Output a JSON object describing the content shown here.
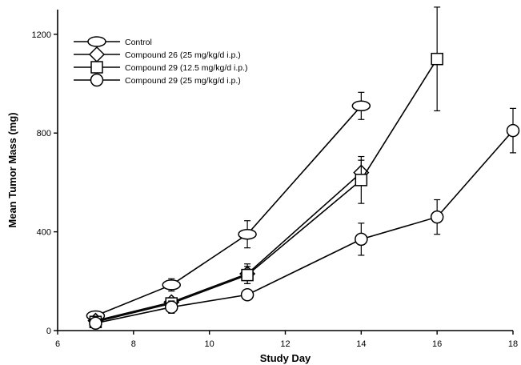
{
  "chart_data": {
    "type": "line",
    "title": "",
    "xlabel": "Study Day",
    "ylabel": "Mean Tumor Mass (mg)",
    "xlim": [
      6,
      18
    ],
    "ylim": [
      0,
      1300
    ],
    "x_ticks": [
      6,
      8,
      10,
      12,
      14,
      16,
      18
    ],
    "y_ticks": [
      0,
      400,
      800,
      1200
    ],
    "grid": false,
    "legend_position": "top-left",
    "series": [
      {
        "name": "Control",
        "marker": "ellipse",
        "points": [
          {
            "x": 7,
            "y": 60,
            "err": 0
          },
          {
            "x": 9,
            "y": 185,
            "err": 25
          },
          {
            "x": 11,
            "y": 390,
            "err": 55
          },
          {
            "x": 14,
            "y": 910,
            "err": 55
          }
        ]
      },
      {
        "name": "Compound 26 (25 mg/kg/d i.p.)",
        "marker": "diamond",
        "points": [
          {
            "x": 7,
            "y": 40,
            "err": 0
          },
          {
            "x": 9,
            "y": 115,
            "err": 15
          },
          {
            "x": 11,
            "y": 230,
            "err": 40
          },
          {
            "x": 14,
            "y": 640,
            "err": 50
          }
        ]
      },
      {
        "name": "Compound 29 (12.5 mg/kg/d i.p.)",
        "marker": "square",
        "points": [
          {
            "x": 7,
            "y": 35,
            "err": 0
          },
          {
            "x": 9,
            "y": 110,
            "err": 15
          },
          {
            "x": 11,
            "y": 225,
            "err": 35
          },
          {
            "x": 14,
            "y": 610,
            "err": 95
          },
          {
            "x": 16,
            "y": 1100,
            "err": 210
          }
        ]
      },
      {
        "name": "Compound 29 (25 mg/kg/d i.p.)",
        "marker": "circle",
        "points": [
          {
            "x": 7,
            "y": 30,
            "err": 0
          },
          {
            "x": 9,
            "y": 95,
            "err": 25
          },
          {
            "x": 11,
            "y": 145,
            "err": 20
          },
          {
            "x": 14,
            "y": 370,
            "err": 65
          },
          {
            "x": 16,
            "y": 460,
            "err": 70
          },
          {
            "x": 18,
            "y": 810,
            "err": 90
          }
        ]
      }
    ]
  }
}
